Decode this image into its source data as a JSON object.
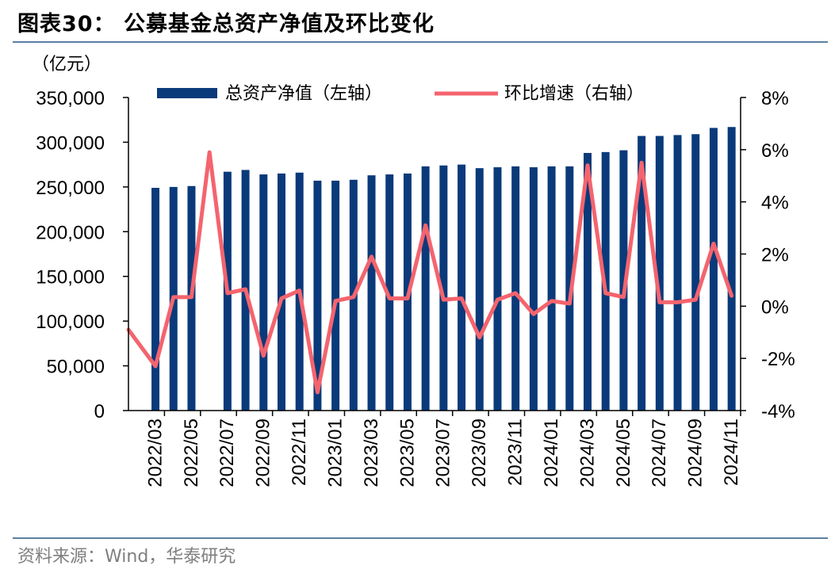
{
  "title": "图表30：  公募基金总资产净值及环比变化",
  "source": "资料来源：Wind，华泰研究",
  "chart_data": {
    "type": "bar",
    "title": "公募基金总资产净值及环比变化",
    "y_left_unit": "（亿元）",
    "y_left_ticks": [
      "0",
      "50,000",
      "100,000",
      "150,000",
      "200,000",
      "250,000",
      "300,000",
      "350,000"
    ],
    "y_left_range": [
      0,
      350000
    ],
    "y_right_ticks": [
      "-4%",
      "-2%",
      "0%",
      "2%",
      "4%",
      "6%",
      "8%"
    ],
    "y_right_range": [
      -4,
      8
    ],
    "x_tick_labels": [
      "2022/03",
      "2022/05",
      "2022/07",
      "2022/09",
      "2022/11",
      "2023/01",
      "2023/03",
      "2023/05",
      "2023/07",
      "2023/09",
      "2023/11",
      "2024/01",
      "2024/03",
      "2024/05",
      "2024/07",
      "2024/09",
      "2024/11"
    ],
    "categories": [
      "2022/02",
      "2022/03",
      "2022/04",
      "2022/05",
      "2022/06",
      "2022/07",
      "2022/08",
      "2022/09",
      "2022/10",
      "2022/11",
      "2022/12",
      "2023/01",
      "2023/02",
      "2023/03",
      "2023/04",
      "2023/05",
      "2023/06",
      "2023/07",
      "2023/08",
      "2023/09",
      "2023/10",
      "2023/11",
      "2023/12",
      "2024/01",
      "2024/02",
      "2024/03",
      "2024/04",
      "2024/05",
      "2024/06",
      "2024/07",
      "2024/08",
      "2024/09",
      "2024/10",
      "2024/11"
    ],
    "series": [
      {
        "name": "总资产净值（左轴）",
        "type": "bar",
        "axis": "left",
        "color": "#0a3a7a",
        "values": [
          null,
          249000,
          250000,
          251000,
          null,
          267000,
          269000,
          264000,
          265000,
          266000,
          257000,
          257000,
          258000,
          263000,
          264000,
          265000,
          273000,
          274000,
          275000,
          271000,
          272000,
          273000,
          272000,
          273000,
          273000,
          288000,
          289000,
          291000,
          307000,
          307000,
          308000,
          309000,
          316000,
          317000
        ]
      },
      {
        "name": "环比增速（右轴）",
        "type": "line",
        "axis": "right",
        "color": "#f4646e",
        "values": [
          -0.9,
          -2.3,
          0.35,
          0.35,
          5.9,
          0.5,
          0.65,
          -1.9,
          0.3,
          0.6,
          -3.3,
          0.2,
          0.35,
          1.9,
          0.3,
          0.3,
          3.1,
          0.25,
          0.3,
          -1.2,
          0.25,
          0.5,
          -0.3,
          0.2,
          0.1,
          5.4,
          0.5,
          0.35,
          5.5,
          0.15,
          0.15,
          0.25,
          2.4,
          0.4
        ]
      }
    ]
  }
}
